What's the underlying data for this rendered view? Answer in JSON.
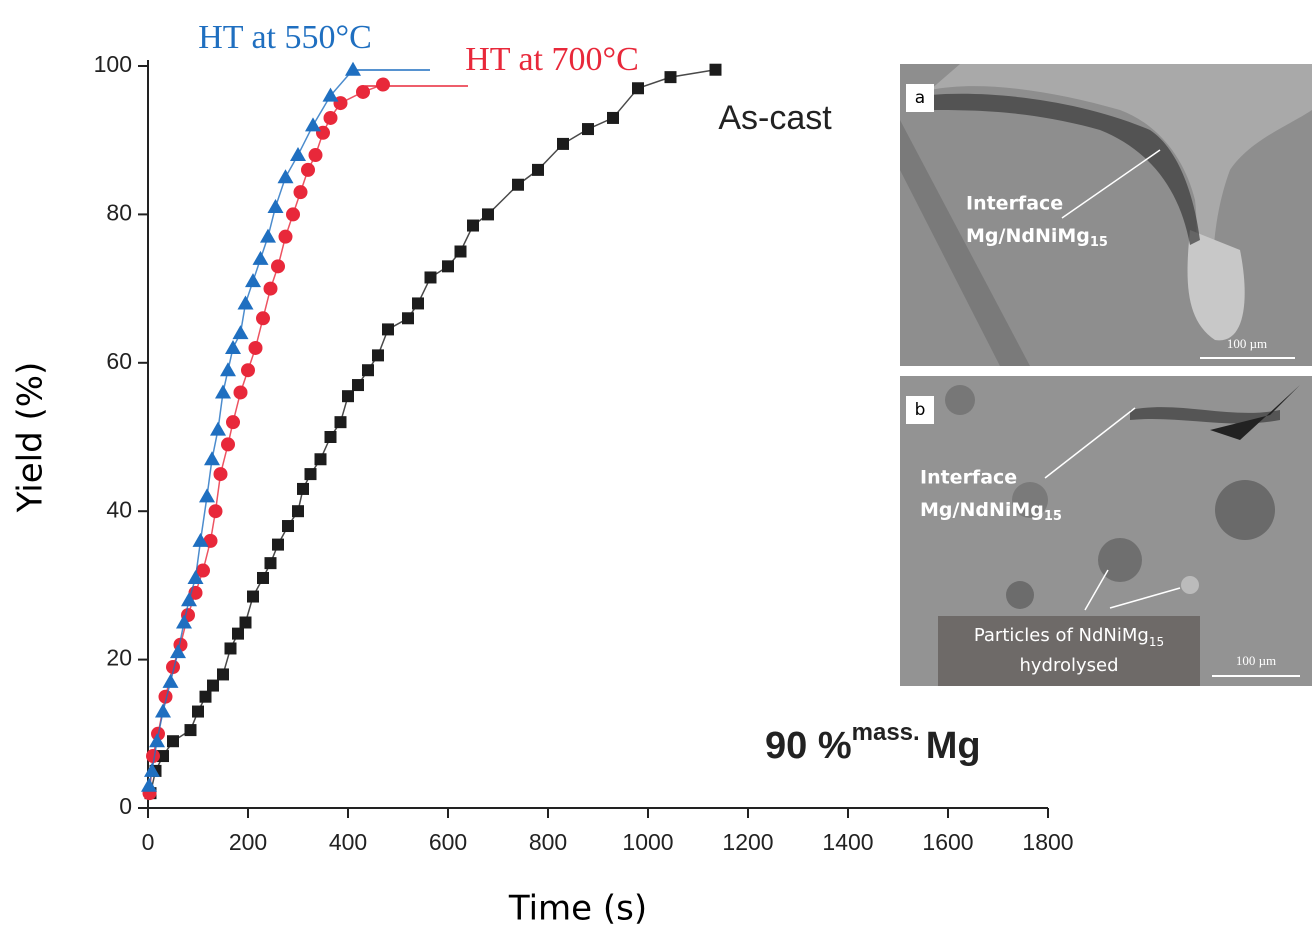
{
  "chart_data": {
    "type": "line",
    "x_label": "Time (s)",
    "y_label": "Yield (%)",
    "xlim": [
      0,
      1800
    ],
    "xticks": [
      0,
      200,
      400,
      600,
      800,
      1000,
      1200,
      1400,
      1600,
      1800
    ],
    "ylim": [
      0,
      100
    ],
    "yticks": [
      0,
      20,
      40,
      60,
      80,
      100
    ],
    "annotation": {
      "main": "90 %",
      "sup": "mass.",
      "end": "Mg"
    },
    "series": [
      {
        "name": "As-cast",
        "color": "#1c1c1c",
        "marker": "square",
        "x": [
          5,
          15,
          30,
          50,
          85,
          100,
          115,
          130,
          150,
          165,
          180,
          195,
          210,
          230,
          245,
          260,
          280,
          300,
          310,
          325,
          345,
          365,
          385,
          400,
          420,
          440,
          460,
          480,
          520,
          540,
          565,
          600,
          625,
          650,
          680,
          740,
          780,
          830,
          880,
          930,
          980,
          1045,
          1135
        ],
        "values": [
          2,
          5,
          7,
          9,
          10.5,
          13,
          15,
          16.5,
          18,
          21.5,
          23.5,
          25,
          28.5,
          31,
          33,
          35.5,
          38,
          40,
          43,
          45,
          47,
          50,
          52,
          55.5,
          57,
          59,
          61,
          64.5,
          66,
          68,
          71.5,
          73,
          75,
          78.5,
          80,
          84,
          86,
          89.5,
          91.5,
          93,
          97,
          98.5,
          99.5
        ]
      },
      {
        "name": "HT at 700°C",
        "color": "#e8283a",
        "marker": "circle",
        "x": [
          3,
          10,
          20,
          35,
          50,
          65,
          80,
          95,
          110,
          125,
          135,
          145,
          160,
          170,
          185,
          200,
          215,
          230,
          245,
          260,
          275,
          290,
          305,
          320,
          335,
          350,
          365,
          385,
          430,
          470
        ],
        "values": [
          2,
          7,
          10,
          15,
          19,
          22,
          26,
          29,
          32,
          36,
          40,
          45,
          49,
          52,
          56,
          59,
          62,
          66,
          70,
          73,
          77,
          80,
          83,
          86,
          88,
          91,
          93,
          95,
          96.5,
          97.5
        ]
      },
      {
        "name": "HT at 550°C",
        "color": "#1f6fc0",
        "marker": "triangle",
        "x": [
          2,
          8,
          18,
          30,
          45,
          60,
          72,
          82,
          95,
          105,
          118,
          128,
          140,
          150,
          160,
          170,
          185,
          195,
          210,
          225,
          240,
          255,
          275,
          300,
          330,
          365,
          410
        ],
        "values": [
          3,
          5,
          9,
          13,
          17,
          21,
          25,
          28,
          31,
          36,
          42,
          47,
          51,
          56,
          59,
          62,
          64,
          68,
          71,
          74,
          77,
          81,
          85,
          88,
          92,
          96,
          99.5
        ]
      }
    ]
  },
  "insets": [
    {
      "panel": "a",
      "label": [
        "Interface",
        "Mg/NdNiMg",
        "15"
      ],
      "scale": "100 µm"
    },
    {
      "panel": "b",
      "label": [
        "Interface",
        "Mg/NdNiMg",
        "15"
      ],
      "note": [
        "Particles of NdNiMg",
        "15",
        "hydrolysed"
      ],
      "scale": "100 µm"
    }
  ]
}
